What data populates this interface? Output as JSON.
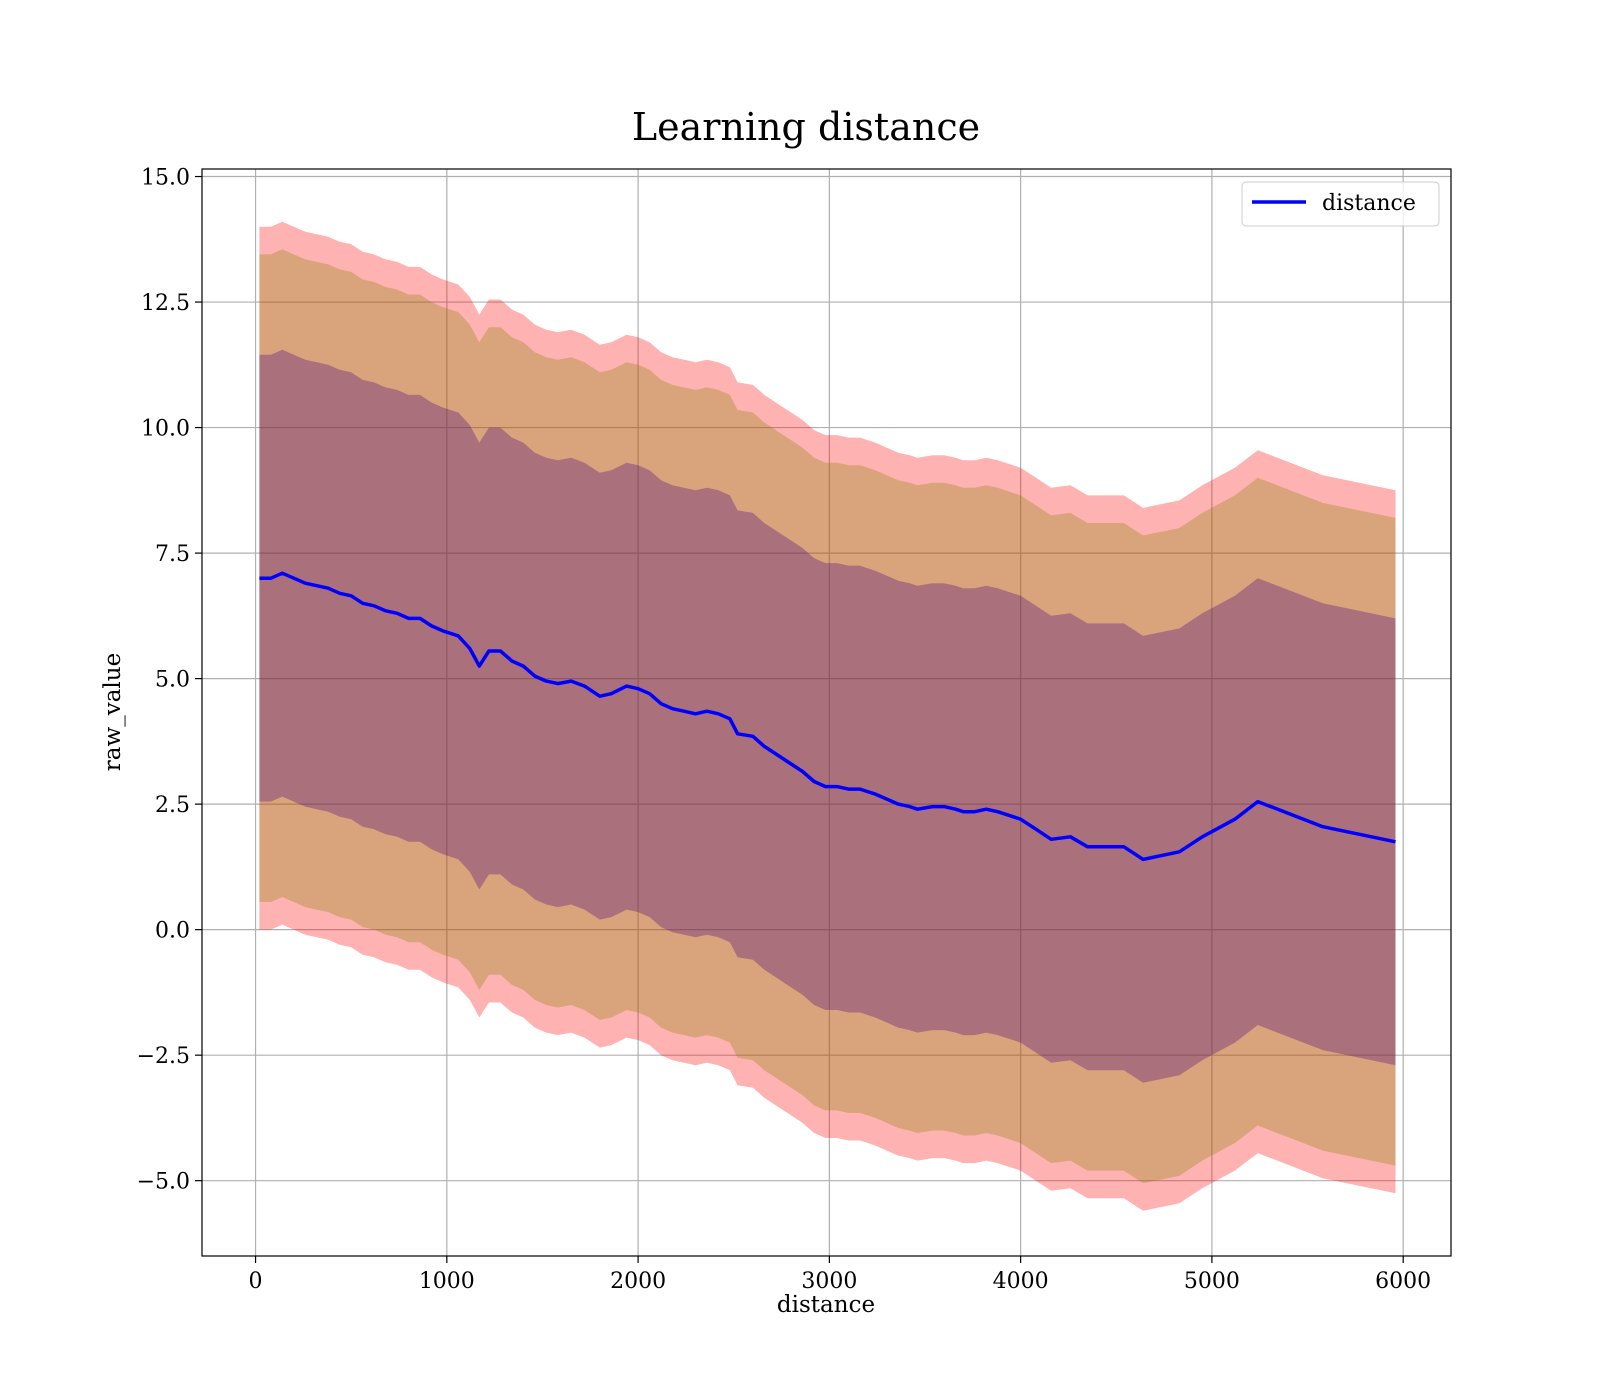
{
  "chart_data": {
    "type": "line",
    "title": "Learning distance",
    "xlabel": "distance",
    "ylabel": "raw_value",
    "xlim": [
      -280,
      6250
    ],
    "ylim": [
      -6.5,
      15.15
    ],
    "grid": true,
    "legend_position": "top-right",
    "x_ticks": [
      {
        "value": 0,
        "label": "0"
      },
      {
        "value": 1000,
        "label": "1000"
      },
      {
        "value": 2000,
        "label": "2000"
      },
      {
        "value": 3000,
        "label": "3000"
      },
      {
        "value": 4000,
        "label": "4000"
      },
      {
        "value": 5000,
        "label": "5000"
      },
      {
        "value": 6000,
        "label": "6000"
      }
    ],
    "y_ticks": [
      {
        "value": -5.0,
        "label": "−5.0"
      },
      {
        "value": -2.5,
        "label": "−2.5"
      },
      {
        "value": 0.0,
        "label": "0.0"
      },
      {
        "value": 2.5,
        "label": "2.5"
      },
      {
        "value": 5.0,
        "label": "5.0"
      },
      {
        "value": 7.5,
        "label": "7.5"
      },
      {
        "value": 10.0,
        "label": "10.0"
      },
      {
        "value": 12.5,
        "label": "12.5"
      },
      {
        "value": 15.0,
        "label": "15.0"
      }
    ],
    "series": [
      {
        "name": "distance",
        "color": "#0000ff",
        "x": [
          20,
          80,
          140,
          200,
          260,
          320,
          380,
          440,
          500,
          560,
          620,
          680,
          740,
          800,
          860,
          920,
          980,
          1060,
          1120,
          1170,
          1220,
          1280,
          1340,
          1400,
          1460,
          1520,
          1580,
          1650,
          1720,
          1800,
          1860,
          1940,
          2000,
          2060,
          2120,
          2180,
          2240,
          2300,
          2360,
          2420,
          2480,
          2520,
          2600,
          2660,
          2720,
          2800,
          2860,
          2920,
          2980,
          3040,
          3100,
          3160,
          3200,
          3240,
          3300,
          3360,
          3420,
          3460,
          3540,
          3600,
          3660,
          3700,
          3760,
          3820,
          3880,
          4000,
          4060,
          4160,
          4260,
          4350,
          4440,
          4540,
          4640,
          4830,
          4950,
          5120,
          5240,
          5580,
          5960
        ],
        "y": [
          7.0,
          7.0,
          7.1,
          7.0,
          6.9,
          6.85,
          6.8,
          6.7,
          6.65,
          6.5,
          6.45,
          6.35,
          6.3,
          6.2,
          6.2,
          6.05,
          5.95,
          5.85,
          5.6,
          5.25,
          5.55,
          5.55,
          5.35,
          5.25,
          5.05,
          4.95,
          4.9,
          4.95,
          4.85,
          4.65,
          4.7,
          4.85,
          4.8,
          4.7,
          4.5,
          4.4,
          4.35,
          4.3,
          4.35,
          4.3,
          4.2,
          3.9,
          3.85,
          3.65,
          3.5,
          3.3,
          3.15,
          2.95,
          2.85,
          2.85,
          2.8,
          2.8,
          2.75,
          2.7,
          2.6,
          2.5,
          2.45,
          2.4,
          2.45,
          2.45,
          2.4,
          2.35,
          2.35,
          2.4,
          2.35,
          2.2,
          2.05,
          1.8,
          1.85,
          1.65,
          1.65,
          1.65,
          1.4,
          1.55,
          1.85,
          2.2,
          2.55,
          2.05,
          1.75
        ],
        "bands": [
          {
            "offset": 7.0,
            "color": "#ff0000",
            "opacity": 0.3
          },
          {
            "offset": 6.45,
            "color": "#808000",
            "opacity": 0.3
          },
          {
            "offset": 4.45,
            "color": "#400080",
            "opacity": 0.3
          }
        ]
      }
    ]
  }
}
